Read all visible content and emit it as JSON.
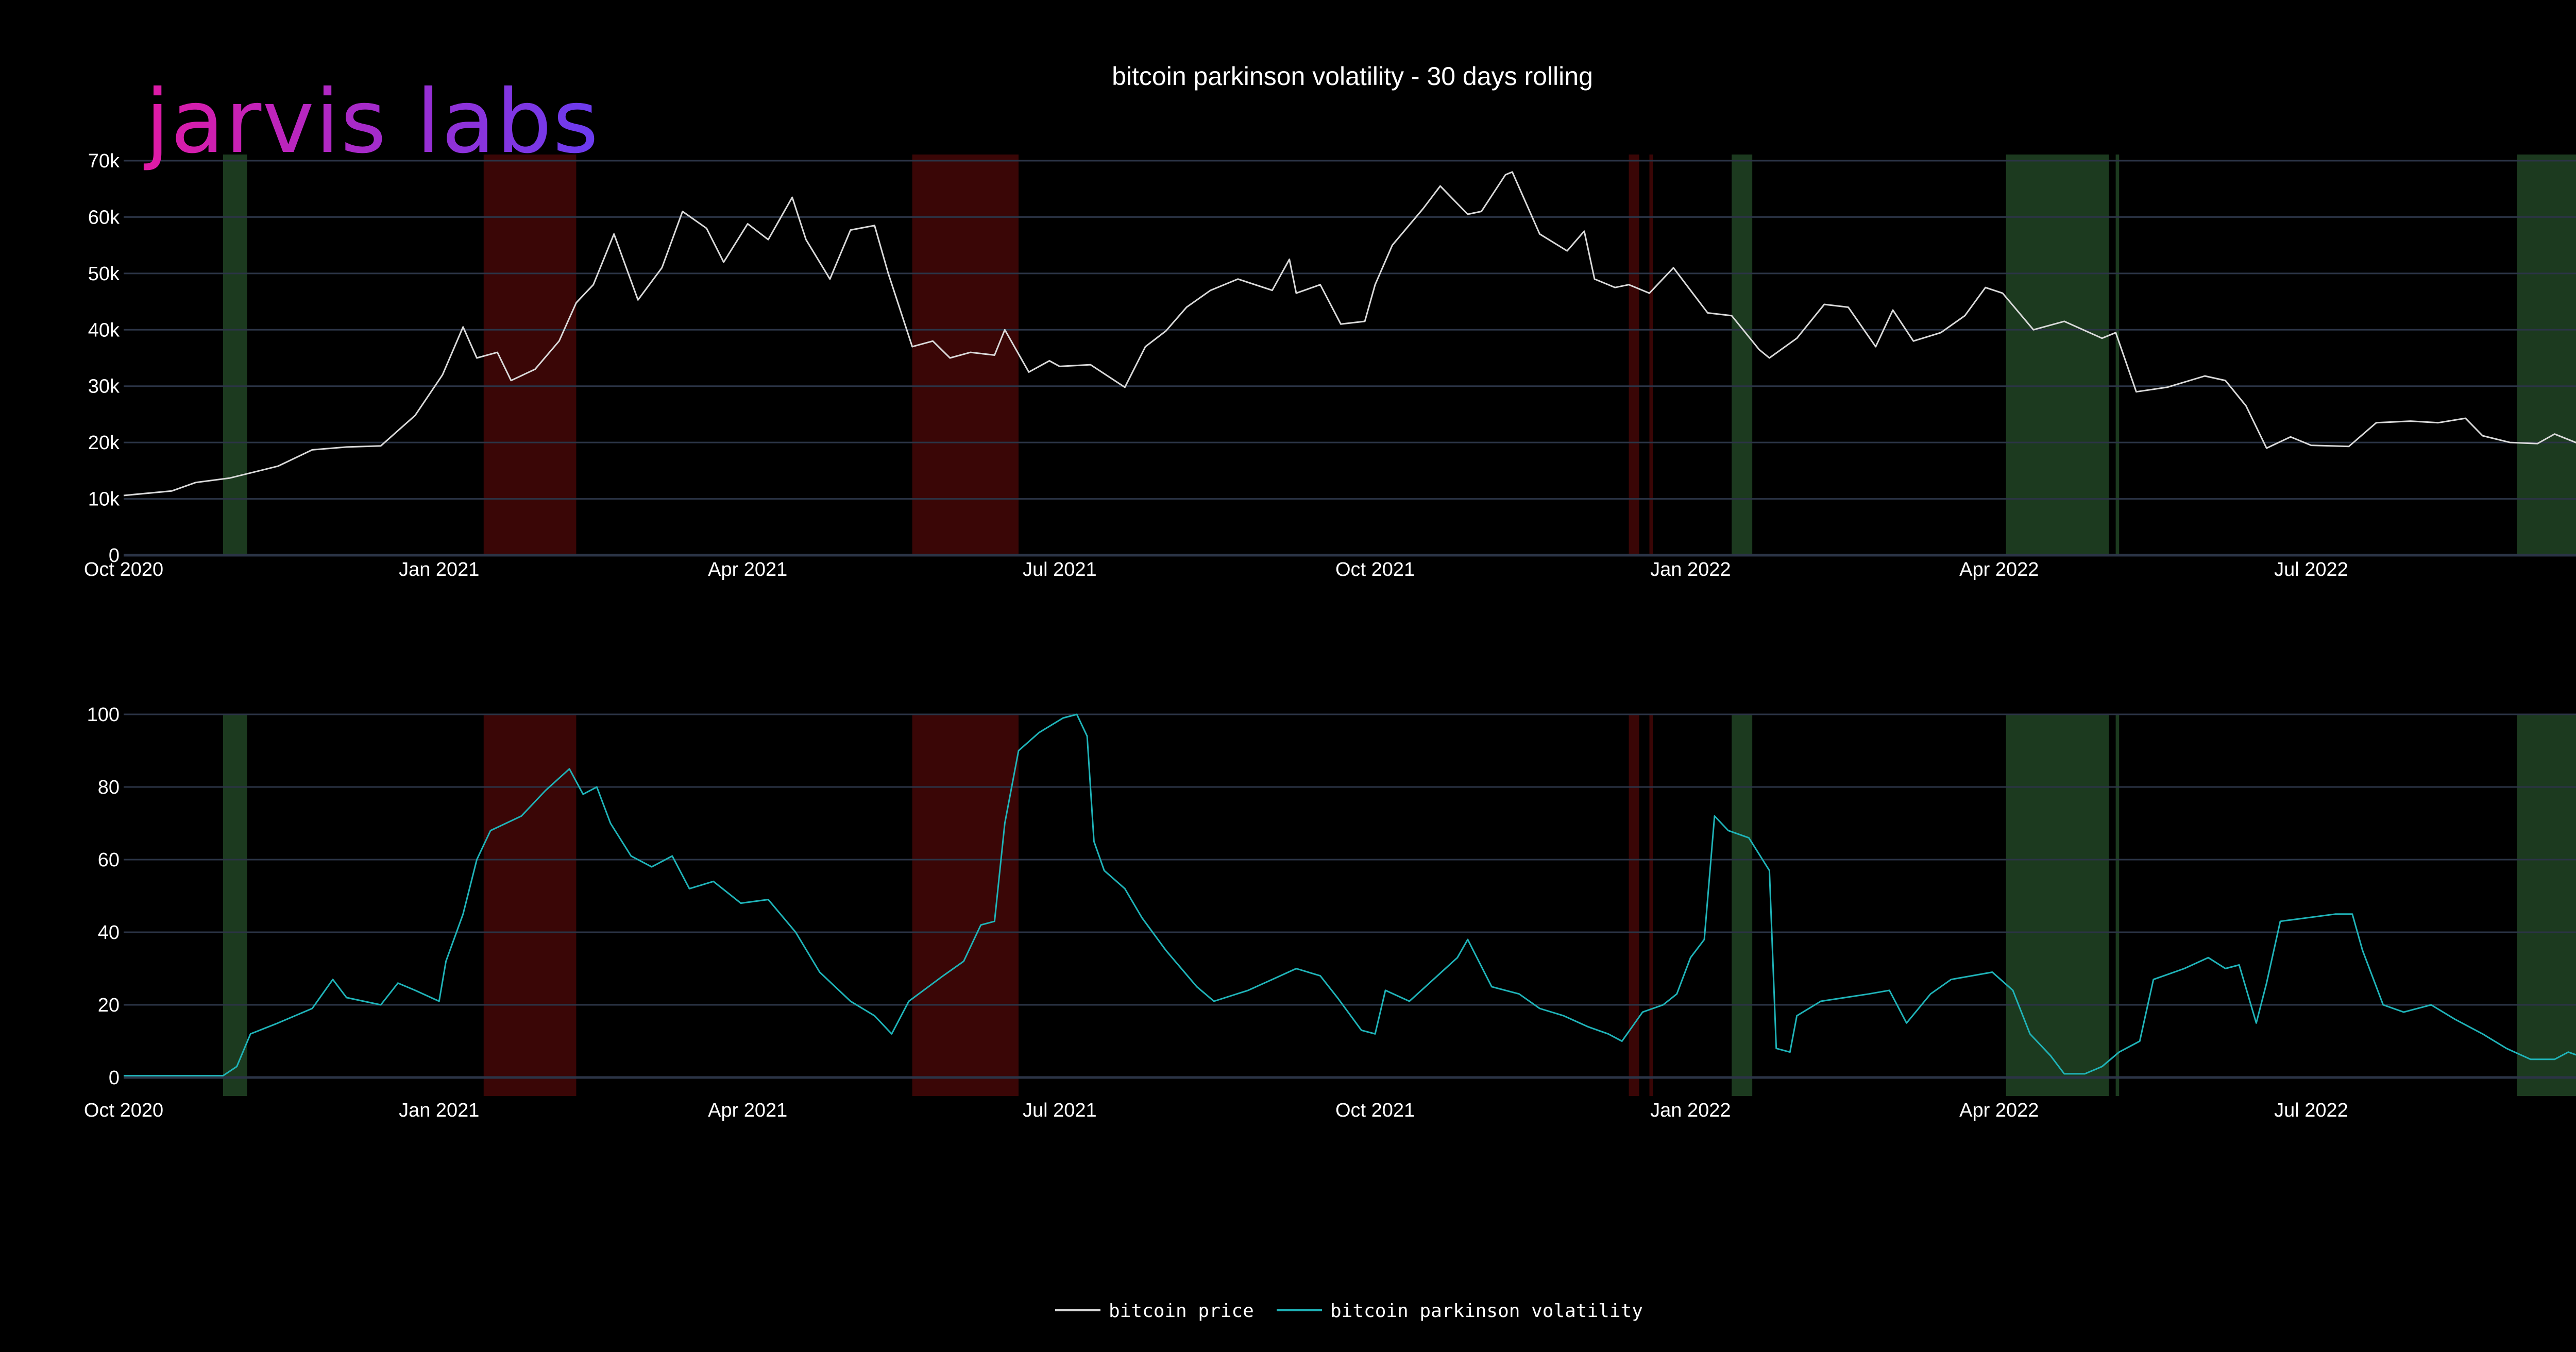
{
  "logo_text": "jarvis labs",
  "colors": {
    "background": "#000000",
    "grid": "#2b3446",
    "price_line": "#d9d9d9",
    "vol_line": "#1fb3b8",
    "green_band": "#1c3a1f",
    "red_band": "#3a0606",
    "logo_start": "#e01aa5",
    "logo_end": "#6a3cf0"
  },
  "chart_data": {
    "title": "bitcoin parkinson volatility - 30 days rolling",
    "legend": {
      "placement": "bottom-center",
      "entries": [
        {
          "name": "bitcoin price",
          "color": "#d9d9d9"
        },
        {
          "name": "bitcoin parkinson volatility",
          "color": "#1fb3b8"
        }
      ]
    },
    "x_range": [
      "2020-10-01",
      "2022-09-17"
    ],
    "x_ticks": [
      {
        "date": "2020-10-01",
        "label": "Oct 2020"
      },
      {
        "date": "2021-01-01",
        "label": "Jan 2021"
      },
      {
        "date": "2021-04-01",
        "label": "Apr 2021"
      },
      {
        "date": "2021-07-01",
        "label": "Jul 2021"
      },
      {
        "date": "2021-10-01",
        "label": "Oct 2021"
      },
      {
        "date": "2022-01-01",
        "label": "Jan 2022"
      },
      {
        "date": "2022-04-01",
        "label": "Apr 2022"
      },
      {
        "date": "2022-07-01",
        "label": "Jul 2022"
      }
    ],
    "regime_bands": [
      {
        "type": "green",
        "start": "2020-10-30",
        "end": "2020-11-06"
      },
      {
        "type": "red",
        "start": "2021-01-14",
        "end": "2021-02-10"
      },
      {
        "type": "red",
        "start": "2021-05-19",
        "end": "2021-06-19"
      },
      {
        "type": "red",
        "start": "2021-12-14",
        "end": "2021-12-17"
      },
      {
        "type": "red",
        "start": "2021-12-20",
        "end": "2021-12-21"
      },
      {
        "type": "green",
        "start": "2022-01-13",
        "end": "2022-01-19"
      },
      {
        "type": "green",
        "start": "2022-04-03",
        "end": "2022-05-03"
      },
      {
        "type": "green",
        "start": "2022-05-05",
        "end": "2022-05-06"
      },
      {
        "type": "green",
        "start": "2022-08-30",
        "end": "2022-09-17"
      }
    ],
    "panels": [
      {
        "type": "line",
        "series_name": "bitcoin price",
        "ylim": [
          0,
          70000
        ],
        "y_ticks": [
          {
            "value": 0,
            "label": "0"
          },
          {
            "value": 10000,
            "label": "10k"
          },
          {
            "value": 20000,
            "label": "20k"
          },
          {
            "value": 30000,
            "label": "30k"
          },
          {
            "value": 40000,
            "label": "40k"
          },
          {
            "value": 50000,
            "label": "50k"
          },
          {
            "value": 60000,
            "label": "60k"
          },
          {
            "value": 70000,
            "label": "70k"
          }
        ],
        "points": [
          [
            "2020-10-01",
            10600
          ],
          [
            "2020-10-15",
            11400
          ],
          [
            "2020-10-22",
            12900
          ],
          [
            "2020-11-01",
            13700
          ],
          [
            "2020-11-15",
            15800
          ],
          [
            "2020-11-25",
            18700
          ],
          [
            "2020-12-05",
            19200
          ],
          [
            "2020-12-15",
            19400
          ],
          [
            "2020-12-25",
            24800
          ],
          [
            "2021-01-02",
            32000
          ],
          [
            "2021-01-08",
            40500
          ],
          [
            "2021-01-12",
            35000
          ],
          [
            "2021-01-18",
            36000
          ],
          [
            "2021-01-22",
            31000
          ],
          [
            "2021-01-29",
            33000
          ],
          [
            "2021-02-05",
            38000
          ],
          [
            "2021-02-10",
            44800
          ],
          [
            "2021-02-15",
            48000
          ],
          [
            "2021-02-21",
            57000
          ],
          [
            "2021-02-28",
            45300
          ],
          [
            "2021-03-07",
            51000
          ],
          [
            "2021-03-13",
            61000
          ],
          [
            "2021-03-20",
            58000
          ],
          [
            "2021-03-25",
            52000
          ],
          [
            "2021-04-01",
            58800
          ],
          [
            "2021-04-07",
            56000
          ],
          [
            "2021-04-14",
            63500
          ],
          [
            "2021-04-18",
            56000
          ],
          [
            "2021-04-25",
            49000
          ],
          [
            "2021-05-01",
            57700
          ],
          [
            "2021-05-08",
            58500
          ],
          [
            "2021-05-12",
            50000
          ],
          [
            "2021-05-19",
            37000
          ],
          [
            "2021-05-25",
            38000
          ],
          [
            "2021-05-30",
            35000
          ],
          [
            "2021-06-05",
            36000
          ],
          [
            "2021-06-12",
            35500
          ],
          [
            "2021-06-15",
            40000
          ],
          [
            "2021-06-22",
            32500
          ],
          [
            "2021-06-28",
            34500
          ],
          [
            "2021-07-01",
            33500
          ],
          [
            "2021-07-10",
            33800
          ],
          [
            "2021-07-20",
            29800
          ],
          [
            "2021-07-26",
            37000
          ],
          [
            "2021-08-01",
            39800
          ],
          [
            "2021-08-07",
            44000
          ],
          [
            "2021-08-14",
            47000
          ],
          [
            "2021-08-22",
            49000
          ],
          [
            "2021-09-01",
            47000
          ],
          [
            "2021-09-06",
            52500
          ],
          [
            "2021-09-08",
            46500
          ],
          [
            "2021-09-15",
            48000
          ],
          [
            "2021-09-21",
            41000
          ],
          [
            "2021-09-28",
            41500
          ],
          [
            "2021-10-01",
            48000
          ],
          [
            "2021-10-06",
            55000
          ],
          [
            "2021-10-15",
            61500
          ],
          [
            "2021-10-20",
            65500
          ],
          [
            "2021-10-28",
            60500
          ],
          [
            "2021-11-01",
            61000
          ],
          [
            "2021-11-08",
            67500
          ],
          [
            "2021-11-10",
            68000
          ],
          [
            "2021-11-18",
            57000
          ],
          [
            "2021-11-26",
            54000
          ],
          [
            "2021-12-01",
            57500
          ],
          [
            "2021-12-04",
            49000
          ],
          [
            "2021-12-10",
            47500
          ],
          [
            "2021-12-14",
            48000
          ],
          [
            "2021-12-20",
            46500
          ],
          [
            "2021-12-27",
            51000
          ],
          [
            "2022-01-01",
            47000
          ],
          [
            "2022-01-06",
            43000
          ],
          [
            "2022-01-13",
            42500
          ],
          [
            "2022-01-21",
            36500
          ],
          [
            "2022-01-24",
            35000
          ],
          [
            "2022-02-01",
            38500
          ],
          [
            "2022-02-09",
            44500
          ],
          [
            "2022-02-16",
            44000
          ],
          [
            "2022-02-24",
            37000
          ],
          [
            "2022-03-01",
            43500
          ],
          [
            "2022-03-07",
            38000
          ],
          [
            "2022-03-15",
            39500
          ],
          [
            "2022-03-22",
            42500
          ],
          [
            "2022-03-28",
            47500
          ],
          [
            "2022-04-02",
            46500
          ],
          [
            "2022-04-11",
            40000
          ],
          [
            "2022-04-20",
            41500
          ],
          [
            "2022-05-01",
            38500
          ],
          [
            "2022-05-05",
            39500
          ],
          [
            "2022-05-11",
            29000
          ],
          [
            "2022-05-20",
            29800
          ],
          [
            "2022-05-31",
            31800
          ],
          [
            "2022-06-06",
            31000
          ],
          [
            "2022-06-12",
            26500
          ],
          [
            "2022-06-18",
            19000
          ],
          [
            "2022-06-25",
            21000
          ],
          [
            "2022-07-01",
            19500
          ],
          [
            "2022-07-12",
            19300
          ],
          [
            "2022-07-20",
            23500
          ],
          [
            "2022-07-30",
            23800
          ],
          [
            "2022-08-07",
            23500
          ],
          [
            "2022-08-15",
            24300
          ],
          [
            "2022-08-20",
            21200
          ],
          [
            "2022-08-28",
            20000
          ],
          [
            "2022-09-05",
            19800
          ],
          [
            "2022-09-10",
            21500
          ],
          [
            "2022-09-17",
            19800
          ]
        ]
      },
      {
        "type": "line",
        "series_name": "bitcoin parkinson volatility",
        "ylim": [
          0,
          100
        ],
        "y_ticks": [
          {
            "value": 0,
            "label": "0"
          },
          {
            "value": 20,
            "label": "20"
          },
          {
            "value": 40,
            "label": "40"
          },
          {
            "value": 60,
            "label": "60"
          },
          {
            "value": 80,
            "label": "80"
          },
          {
            "value": 100,
            "label": "100"
          }
        ],
        "points": [
          [
            "2020-10-01",
            0.5
          ],
          [
            "2020-10-30",
            0.5
          ],
          [
            "2020-11-03",
            3
          ],
          [
            "2020-11-07",
            12
          ],
          [
            "2020-11-15",
            15
          ],
          [
            "2020-11-25",
            19
          ],
          [
            "2020-12-01",
            27
          ],
          [
            "2020-12-05",
            22
          ],
          [
            "2020-12-15",
            20
          ],
          [
            "2020-12-20",
            26
          ],
          [
            "2020-12-25",
            24
          ],
          [
            "2021-01-01",
            21
          ],
          [
            "2021-01-03",
            32
          ],
          [
            "2021-01-08",
            45
          ],
          [
            "2021-01-12",
            60
          ],
          [
            "2021-01-16",
            68
          ],
          [
            "2021-01-25",
            72
          ],
          [
            "2021-02-01",
            79
          ],
          [
            "2021-02-08",
            85
          ],
          [
            "2021-02-12",
            78
          ],
          [
            "2021-02-16",
            80
          ],
          [
            "2021-02-20",
            70
          ],
          [
            "2021-02-26",
            61
          ],
          [
            "2021-03-04",
            58
          ],
          [
            "2021-03-10",
            61
          ],
          [
            "2021-03-15",
            52
          ],
          [
            "2021-03-22",
            54
          ],
          [
            "2021-03-30",
            48
          ],
          [
            "2021-04-07",
            49
          ],
          [
            "2021-04-15",
            40
          ],
          [
            "2021-04-22",
            29
          ],
          [
            "2021-05-01",
            21
          ],
          [
            "2021-05-08",
            17
          ],
          [
            "2021-05-13",
            12
          ],
          [
            "2021-05-18",
            21
          ],
          [
            "2021-05-28",
            28
          ],
          [
            "2021-06-03",
            32
          ],
          [
            "2021-06-08",
            42
          ],
          [
            "2021-06-12",
            43
          ],
          [
            "2021-06-15",
            70
          ],
          [
            "2021-06-19",
            90
          ],
          [
            "2021-06-25",
            95
          ],
          [
            "2021-07-02",
            99
          ],
          [
            "2021-07-06",
            100
          ],
          [
            "2021-07-09",
            94
          ],
          [
            "2021-07-11",
            65
          ],
          [
            "2021-07-14",
            57
          ],
          [
            "2021-07-20",
            52
          ],
          [
            "2021-07-25",
            44
          ],
          [
            "2021-08-01",
            35
          ],
          [
            "2021-08-10",
            25
          ],
          [
            "2021-08-15",
            21
          ],
          [
            "2021-08-25",
            24
          ],
          [
            "2021-09-01",
            27
          ],
          [
            "2021-09-08",
            30
          ],
          [
            "2021-09-15",
            28
          ],
          [
            "2021-09-20",
            22
          ],
          [
            "2021-09-27",
            13
          ],
          [
            "2021-10-01",
            12
          ],
          [
            "2021-10-04",
            24
          ],
          [
            "2021-10-11",
            21
          ],
          [
            "2021-10-18",
            27
          ],
          [
            "2021-10-25",
            33
          ],
          [
            "2021-10-28",
            38
          ],
          [
            "2021-11-04",
            25
          ],
          [
            "2021-11-12",
            23
          ],
          [
            "2021-11-18",
            19
          ],
          [
            "2021-11-25",
            17
          ],
          [
            "2021-12-02",
            14
          ],
          [
            "2021-12-08",
            12
          ],
          [
            "2021-12-12",
            10
          ],
          [
            "2021-12-18",
            18
          ],
          [
            "2021-12-24",
            20
          ],
          [
            "2021-12-28",
            23
          ],
          [
            "2022-01-01",
            33
          ],
          [
            "2022-01-05",
            38
          ],
          [
            "2022-01-08",
            72
          ],
          [
            "2022-01-12",
            68
          ],
          [
            "2022-01-18",
            66
          ],
          [
            "2022-01-22",
            60
          ],
          [
            "2022-01-24",
            57
          ],
          [
            "2022-01-26",
            8
          ],
          [
            "2022-01-30",
            7
          ],
          [
            "2022-02-01",
            17
          ],
          [
            "2022-02-08",
            21
          ],
          [
            "2022-02-15",
            22
          ],
          [
            "2022-02-22",
            23
          ],
          [
            "2022-02-28",
            24
          ],
          [
            "2022-03-05",
            15
          ],
          [
            "2022-03-12",
            23
          ],
          [
            "2022-03-18",
            27
          ],
          [
            "2022-03-24",
            28
          ],
          [
            "2022-03-30",
            29
          ],
          [
            "2022-04-05",
            24
          ],
          [
            "2022-04-10",
            12
          ],
          [
            "2022-04-16",
            6
          ],
          [
            "2022-04-20",
            1
          ],
          [
            "2022-04-26",
            1
          ],
          [
            "2022-05-01",
            3
          ],
          [
            "2022-05-06",
            7
          ],
          [
            "2022-05-12",
            10
          ],
          [
            "2022-05-16",
            27
          ],
          [
            "2022-05-25",
            30
          ],
          [
            "2022-06-01",
            33
          ],
          [
            "2022-06-06",
            30
          ],
          [
            "2022-06-10",
            31
          ],
          [
            "2022-06-15",
            15
          ],
          [
            "2022-06-18",
            26
          ],
          [
            "2022-06-22",
            43
          ],
          [
            "2022-06-30",
            44
          ],
          [
            "2022-07-08",
            45
          ],
          [
            "2022-07-13",
            45
          ],
          [
            "2022-07-16",
            35
          ],
          [
            "2022-07-22",
            20
          ],
          [
            "2022-07-28",
            18
          ],
          [
            "2022-08-05",
            20
          ],
          [
            "2022-08-12",
            16
          ],
          [
            "2022-08-20",
            12
          ],
          [
            "2022-08-27",
            8
          ],
          [
            "2022-09-03",
            5
          ],
          [
            "2022-09-10",
            5
          ],
          [
            "2022-09-14",
            7
          ],
          [
            "2022-09-17",
            6
          ]
        ]
      }
    ]
  }
}
